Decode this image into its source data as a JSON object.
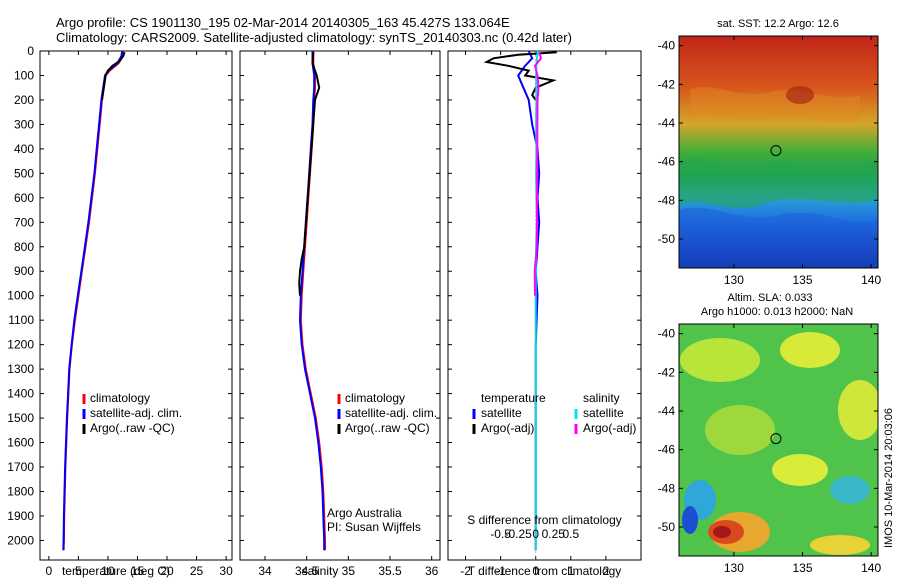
{
  "header": {
    "line1": "Argo profile: CS 1901130_195 02-Mar-2014 20140305_163 45.427S 133.064E",
    "line2": "Climatology: CARS2009. Satellite-adjusted climatology: synTS_20140303.nc (0.42d later)"
  },
  "colors": {
    "climatology": "#ff0000",
    "satellite": "#0000ff",
    "argo": "#000000",
    "s_satellite": "#00e5e5",
    "s_argo": "#ff00ff"
  },
  "side_text": "IMOS 10-Mar-2014 20:03:06",
  "chart_data": [
    {
      "type": "line",
      "id": "temperature",
      "xlabel": "temperature (deg C)",
      "ylabel": "",
      "xlim": [
        -1.5,
        31
      ],
      "ylim": [
        2080,
        0
      ],
      "xticks": [
        0,
        5,
        10,
        15,
        20,
        25,
        30
      ],
      "yticks": [
        0,
        100,
        200,
        300,
        400,
        500,
        600,
        700,
        800,
        900,
        1000,
        1100,
        1200,
        1300,
        1400,
        1500,
        1600,
        1700,
        1800,
        1900,
        2000
      ],
      "legend": [
        "climatology",
        "satellite-adj. clim.",
        "Argo(..raw -QC)"
      ],
      "legend_position": "center-right",
      "series": [
        {
          "name": "climatology",
          "color": "#ff0000",
          "depth": [
            0,
            20,
            50,
            80,
            100,
            150,
            200,
            300,
            400,
            500,
            600,
            700,
            800,
            900,
            1000,
            1100,
            1200,
            1300,
            1400,
            1500,
            1600,
            1700,
            1800,
            1900,
            2000,
            2040
          ],
          "values": [
            12.6,
            12.5,
            11.8,
            10.3,
            9.6,
            9.3,
            9.0,
            8.6,
            8.2,
            7.8,
            7.3,
            6.8,
            6.2,
            5.6,
            5.0,
            4.4,
            3.9,
            3.5,
            3.3,
            3.1,
            2.95,
            2.8,
            2.7,
            2.6,
            2.55,
            2.5
          ]
        },
        {
          "name": "satellite-adj. clim.",
          "color": "#0000ff",
          "depth": [
            0,
            20,
            50,
            80,
            100,
            150,
            200,
            300,
            400,
            500,
            600,
            700,
            800,
            900,
            1000,
            1100,
            1200,
            1300,
            1400,
            1500,
            1600,
            1700,
            1800,
            1900,
            2000,
            2040
          ],
          "values": [
            12.4,
            12.3,
            11.6,
            10.1,
            9.5,
            9.2,
            8.9,
            8.5,
            8.1,
            7.7,
            7.2,
            6.7,
            6.1,
            5.5,
            4.9,
            4.3,
            3.85,
            3.45,
            3.25,
            3.05,
            2.9,
            2.75,
            2.65,
            2.55,
            2.5,
            2.45
          ]
        },
        {
          "name": "Argo(..raw -QC)",
          "color": "#000000",
          "depth": [
            5,
            20,
            40,
            60,
            80,
            100,
            150,
            200
          ],
          "values": [
            12.8,
            12.6,
            12.0,
            10.8,
            10.0,
            9.6,
            9.3,
            9.0
          ]
        }
      ]
    },
    {
      "type": "line",
      "id": "salinity",
      "xlabel": "salinity",
      "ylabel": "",
      "xlim": [
        33.7,
        36.1
      ],
      "ylim": [
        2080,
        0
      ],
      "xticks": [
        34,
        34.5,
        35,
        35.5,
        36
      ],
      "legend": [
        "climatology",
        "satellite-adj. clim.",
        "Argo(..raw -QC)"
      ],
      "legend_position": "center-right",
      "annotation": [
        "Argo Australia",
        "PI: Susan Wijffels"
      ],
      "series": [
        {
          "name": "climatology",
          "color": "#ff0000",
          "depth": [
            0,
            50,
            100,
            150,
            200,
            300,
            400,
            500,
            600,
            700,
            800,
            900,
            1000,
            1100,
            1200,
            1300,
            1400,
            1500,
            1600,
            1700,
            1800,
            1900,
            2000,
            2040
          ],
          "values": [
            34.58,
            34.58,
            34.6,
            34.6,
            34.59,
            34.58,
            34.56,
            34.54,
            34.52,
            34.5,
            34.48,
            34.46,
            34.44,
            34.43,
            34.45,
            34.49,
            34.55,
            34.61,
            34.65,
            34.68,
            34.7,
            34.71,
            34.72,
            34.72
          ]
        },
        {
          "name": "satellite-adj. clim.",
          "color": "#0000ff",
          "depth": [
            0,
            50,
            100,
            150,
            200,
            300,
            400,
            500,
            600,
            700,
            800,
            900,
            1000,
            1100,
            1200,
            1300,
            1400,
            1500,
            1600,
            1700,
            1800,
            1900,
            2000,
            2040
          ],
          "values": [
            34.57,
            34.57,
            34.59,
            34.59,
            34.58,
            34.57,
            34.55,
            34.53,
            34.51,
            34.49,
            34.47,
            34.45,
            34.43,
            34.42,
            34.44,
            34.48,
            34.54,
            34.6,
            34.64,
            34.67,
            34.69,
            34.7,
            34.71,
            34.71
          ]
        },
        {
          "name": "Argo(..raw -QC)",
          "color": "#000000",
          "depth": [
            5,
            50,
            100,
            150,
            200,
            800,
            850,
            900,
            950,
            1000
          ],
          "values": [
            34.58,
            34.57,
            34.62,
            34.65,
            34.6,
            34.47,
            34.44,
            34.42,
            34.41,
            34.42
          ]
        }
      ]
    },
    {
      "type": "line",
      "id": "difference",
      "xlabel": "T difference from climatology",
      "x2label": "S difference from climatology",
      "xlim": [
        -2.5,
        3
      ],
      "ylim": [
        2080,
        0
      ],
      "xticks": [
        -2,
        -1,
        0,
        1,
        2
      ],
      "x2ticks": [
        -0.5,
        -0.25,
        0,
        0.25,
        0.5
      ],
      "legend_temperature_title": "temperature",
      "legend_salinity_title": "salinity",
      "legend_temperature": [
        "satellite",
        "Argo(-adj)"
      ],
      "legend_salinity": [
        "satellite",
        "Argo(-adj)"
      ],
      "legend_position": "center-right",
      "series": [
        {
          "name": "T satellite",
          "color": "#0000ff",
          "depth": [
            0,
            30,
            60,
            100,
            150,
            200,
            300,
            400,
            500,
            600,
            700,
            800,
            900,
            1000,
            1200,
            1400,
            1600,
            1800,
            2000,
            2040
          ],
          "values": [
            -0.2,
            -0.1,
            -0.3,
            -0.5,
            -0.35,
            -0.2,
            -0.1,
            0.05,
            0.1,
            0.05,
            0.1,
            0.05,
            0.0,
            0.05,
            0.0,
            0.0,
            0.0,
            0.0,
            0.0,
            0.0
          ]
        },
        {
          "name": "T Argo(-adj)",
          "color": "#000000",
          "depth": [
            5,
            15,
            30,
            45,
            60,
            80,
            100,
            120,
            150,
            180,
            200
          ],
          "values": [
            0.6,
            -0.5,
            -1.2,
            -1.4,
            -0.8,
            -0.2,
            -0.3,
            0.5,
            0.0,
            -0.1,
            0.0
          ]
        },
        {
          "name": "S satellite",
          "color": "#00e5e5",
          "depth": [
            0,
            50,
            100,
            200,
            300,
            400,
            500,
            600,
            700,
            800,
            900,
            1000,
            1200,
            1400,
            1600,
            1800,
            2000,
            2040
          ],
          "values": [
            0.06,
            0.02,
            0.01,
            0.02,
            0.01,
            0.02,
            0.01,
            0.02,
            0.03,
            0.01,
            0.0,
            0.0,
            0.0,
            0.0,
            0.0,
            0.0,
            0.0,
            0.0
          ]
        },
        {
          "name": "S Argo(-adj)",
          "color": "#ff00ff",
          "depth": [
            5,
            30,
            60,
            100,
            150,
            200,
            800,
            900,
            1000
          ],
          "values": [
            0.1,
            0.15,
            -0.02,
            0.05,
            0.08,
            0.05,
            0.03,
            -0.03,
            -0.02
          ]
        }
      ]
    },
    {
      "type": "heatmap",
      "id": "sst_map",
      "title": "sat. SST: 12.2  Argo: 12.6",
      "xlim": [
        126,
        140.5
      ],
      "ylim": [
        -51.5,
        -39.5
      ],
      "xticks": [
        130,
        135,
        140
      ],
      "yticks": [
        -40,
        -42,
        -44,
        -46,
        -48,
        -50
      ],
      "marker": {
        "lon": 133.064,
        "lat": -45.427
      }
    },
    {
      "type": "heatmap",
      "id": "sla_map",
      "title": "Altim. SLA: 0.033",
      "subtitle": "Argo h1000: 0.013  h2000: NaN",
      "xlim": [
        126,
        140.5
      ],
      "ylim": [
        -51.5,
        -39.5
      ],
      "xticks": [
        130,
        135,
        140
      ],
      "yticks": [
        -40,
        -42,
        -44,
        -46,
        -48,
        -50
      ],
      "marker": {
        "lon": 133.064,
        "lat": -45.427
      }
    }
  ]
}
